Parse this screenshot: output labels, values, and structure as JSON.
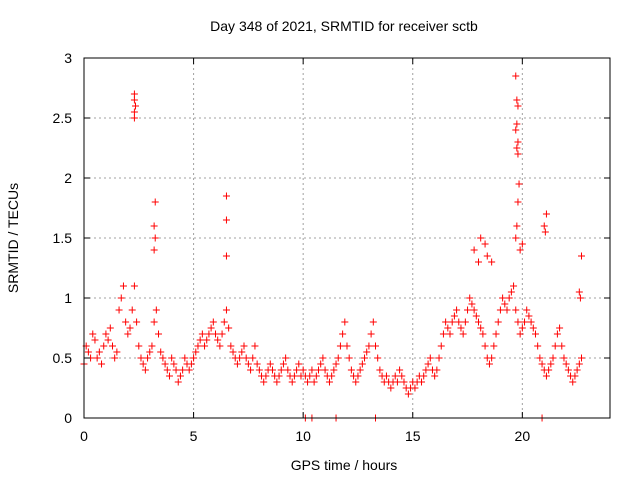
{
  "chart_data": {
    "type": "scatter",
    "title": "Day 348 of 2021, SRMTID for receiver sctb",
    "xlabel": "GPS time / hours",
    "ylabel": "SRMTID / TECUs",
    "xlim": [
      0,
      24
    ],
    "ylim": [
      0,
      3
    ],
    "xticks": [
      0,
      5,
      10,
      15,
      20
    ],
    "yticks": [
      0,
      0.5,
      1,
      1.5,
      2,
      2.5,
      3
    ],
    "xtick_labels": [
      "0",
      "5",
      "10",
      "15",
      "20"
    ],
    "ytick_labels": [
      "0",
      "0.5",
      "1",
      "1.5",
      "2",
      "2.5",
      "3"
    ],
    "grid": true,
    "marker": "plus",
    "colors": {
      "points": "#ff0000",
      "grid": "#a0a0a0",
      "axes": "#000000"
    },
    "series": [
      {
        "name": "SRMTID",
        "x": [
          0.0,
          0.1,
          0.2,
          0.3,
          0.4,
          0.5,
          0.6,
          0.7,
          0.8,
          0.9,
          1.0,
          1.1,
          1.2,
          1.3,
          1.4,
          1.5,
          1.6,
          1.7,
          1.8,
          1.9,
          2.0,
          2.1,
          2.2,
          2.3,
          2.4,
          2.5,
          2.6,
          2.7,
          2.8,
          2.9,
          3.0,
          3.1,
          3.2,
          3.3,
          3.4,
          3.5,
          3.6,
          3.7,
          3.8,
          3.9,
          4.0,
          4.1,
          4.2,
          4.3,
          4.4,
          4.5,
          4.6,
          4.7,
          4.8,
          4.9,
          5.0,
          5.1,
          5.2,
          5.3,
          5.4,
          5.5,
          5.6,
          5.7,
          5.8,
          5.9,
          6.0,
          6.1,
          6.2,
          6.3,
          6.4,
          6.5,
          6.6,
          6.7,
          6.8,
          6.9,
          7.0,
          7.1,
          7.2,
          7.3,
          7.4,
          7.5,
          7.6,
          7.7,
          7.8,
          7.9,
          8.0,
          8.1,
          8.2,
          8.3,
          8.4,
          8.5,
          8.6,
          8.7,
          8.8,
          8.9,
          9.0,
          9.1,
          9.2,
          9.3,
          9.4,
          9.5,
          9.6,
          9.7,
          9.8,
          9.9,
          10.0,
          10.1,
          10.2,
          10.3,
          10.4,
          10.5,
          10.6,
          10.7,
          10.8,
          10.9,
          11.0,
          11.1,
          11.2,
          11.3,
          11.4,
          11.5,
          11.6,
          11.7,
          11.8,
          11.9,
          12.0,
          12.1,
          12.2,
          12.3,
          12.4,
          12.5,
          12.6,
          12.7,
          12.8,
          12.9,
          13.0,
          13.1,
          13.2,
          13.3,
          13.4,
          13.5,
          13.6,
          13.7,
          13.8,
          13.9,
          14.0,
          14.1,
          14.2,
          14.3,
          14.4,
          14.5,
          14.6,
          14.7,
          14.8,
          14.9,
          15.0,
          15.1,
          15.2,
          15.3,
          15.4,
          15.5,
          15.6,
          15.7,
          15.8,
          15.9,
          16.0,
          16.1,
          16.2,
          16.3,
          16.4,
          16.5,
          16.6,
          16.7,
          16.8,
          16.9,
          17.0,
          17.1,
          17.2,
          17.3,
          17.4,
          17.5,
          17.6,
          17.7,
          17.8,
          17.9,
          18.0,
          18.1,
          18.2,
          18.3,
          18.4,
          18.5,
          18.6,
          18.7,
          18.8,
          18.9,
          19.0,
          19.1,
          19.2,
          19.3,
          19.4,
          19.5,
          19.6,
          19.7,
          19.8,
          19.9,
          20.0,
          20.1,
          20.2,
          20.3,
          20.4,
          20.5,
          20.6,
          20.7,
          20.8,
          20.9,
          21.0,
          21.1,
          21.2,
          21.3,
          21.4,
          21.5,
          21.6,
          21.7,
          21.8,
          21.9,
          22.0,
          22.1,
          22.2,
          22.3,
          22.4,
          22.5,
          22.6,
          22.7,
          2.3,
          2.3,
          2.35,
          2.3,
          2.3,
          3.2,
          3.25,
          3.2,
          3.25,
          6.5,
          6.5,
          6.5,
          19.7,
          19.75,
          19.8,
          19.75,
          19.7,
          19.8,
          19.75,
          19.8,
          19.85,
          19.8,
          19.75,
          19.7,
          19.9,
          20.0,
          21.1,
          21.0,
          21.05,
          18.1,
          18.3,
          17.8,
          18.0,
          18.4,
          18.6,
          22.7,
          22.6,
          22.65,
          10.1,
          10.4,
          11.5,
          13.3,
          20.9
        ],
        "y": [
          0.45,
          0.6,
          0.55,
          0.5,
          0.7,
          0.65,
          0.5,
          0.55,
          0.45,
          0.6,
          0.7,
          0.65,
          0.75,
          0.6,
          0.5,
          0.55,
          0.9,
          1.0,
          1.1,
          0.8,
          0.7,
          0.75,
          0.9,
          1.1,
          0.8,
          0.6,
          0.5,
          0.45,
          0.4,
          0.5,
          0.55,
          0.6,
          0.8,
          0.9,
          0.7,
          0.55,
          0.5,
          0.45,
          0.4,
          0.35,
          0.5,
          0.45,
          0.4,
          0.3,
          0.35,
          0.4,
          0.5,
          0.45,
          0.4,
          0.45,
          0.5,
          0.55,
          0.6,
          0.65,
          0.7,
          0.6,
          0.65,
          0.7,
          0.75,
          0.8,
          0.7,
          0.65,
          0.6,
          0.7,
          0.8,
          0.9,
          0.75,
          0.6,
          0.55,
          0.5,
          0.45,
          0.5,
          0.55,
          0.6,
          0.5,
          0.45,
          0.4,
          0.5,
          0.6,
          0.45,
          0.4,
          0.35,
          0.3,
          0.35,
          0.4,
          0.45,
          0.4,
          0.35,
          0.3,
          0.35,
          0.4,
          0.45,
          0.5,
          0.4,
          0.35,
          0.3,
          0.35,
          0.4,
          0.45,
          0.35,
          0.4,
          0.35,
          0.3,
          0.35,
          0.4,
          0.3,
          0.35,
          0.4,
          0.45,
          0.5,
          0.4,
          0.35,
          0.3,
          0.35,
          0.4,
          0.45,
          0.5,
          0.6,
          0.7,
          0.8,
          0.6,
          0.5,
          0.4,
          0.35,
          0.3,
          0.35,
          0.4,
          0.45,
          0.5,
          0.55,
          0.6,
          0.7,
          0.8,
          0.6,
          0.5,
          0.4,
          0.35,
          0.3,
          0.35,
          0.3,
          0.25,
          0.3,
          0.35,
          0.3,
          0.4,
          0.35,
          0.3,
          0.25,
          0.2,
          0.25,
          0.3,
          0.25,
          0.3,
          0.35,
          0.3,
          0.35,
          0.4,
          0.45,
          0.5,
          0.4,
          0.35,
          0.4,
          0.5,
          0.6,
          0.7,
          0.8,
          0.75,
          0.7,
          0.8,
          0.85,
          0.9,
          0.8,
          0.75,
          0.7,
          0.8,
          0.9,
          1.0,
          0.95,
          0.9,
          0.85,
          0.8,
          0.75,
          0.7,
          0.6,
          0.5,
          0.45,
          0.5,
          0.6,
          0.7,
          0.8,
          0.9,
          1.0,
          0.95,
          0.9,
          1.0,
          1.05,
          1.1,
          0.9,
          0.8,
          0.7,
          0.75,
          0.8,
          0.9,
          0.85,
          0.8,
          0.75,
          0.7,
          0.6,
          0.5,
          0.45,
          0.4,
          0.35,
          0.4,
          0.45,
          0.5,
          0.6,
          0.7,
          0.75,
          0.6,
          0.5,
          0.45,
          0.4,
          0.35,
          0.3,
          0.35,
          0.4,
          0.45,
          0.5,
          2.5,
          2.55,
          2.6,
          2.65,
          2.7,
          1.6,
          1.8,
          1.4,
          1.5,
          1.85,
          1.65,
          1.35,
          2.85,
          2.65,
          2.6,
          2.45,
          2.4,
          2.3,
          2.25,
          2.2,
          1.95,
          1.8,
          1.6,
          1.5,
          1.4,
          1.45,
          1.7,
          1.6,
          1.55,
          1.5,
          1.45,
          1.4,
          1.3,
          1.35,
          1.3,
          1.35,
          1.05,
          1.0,
          0.0,
          0.0,
          0.0,
          0.0,
          0.0
        ]
      }
    ]
  }
}
